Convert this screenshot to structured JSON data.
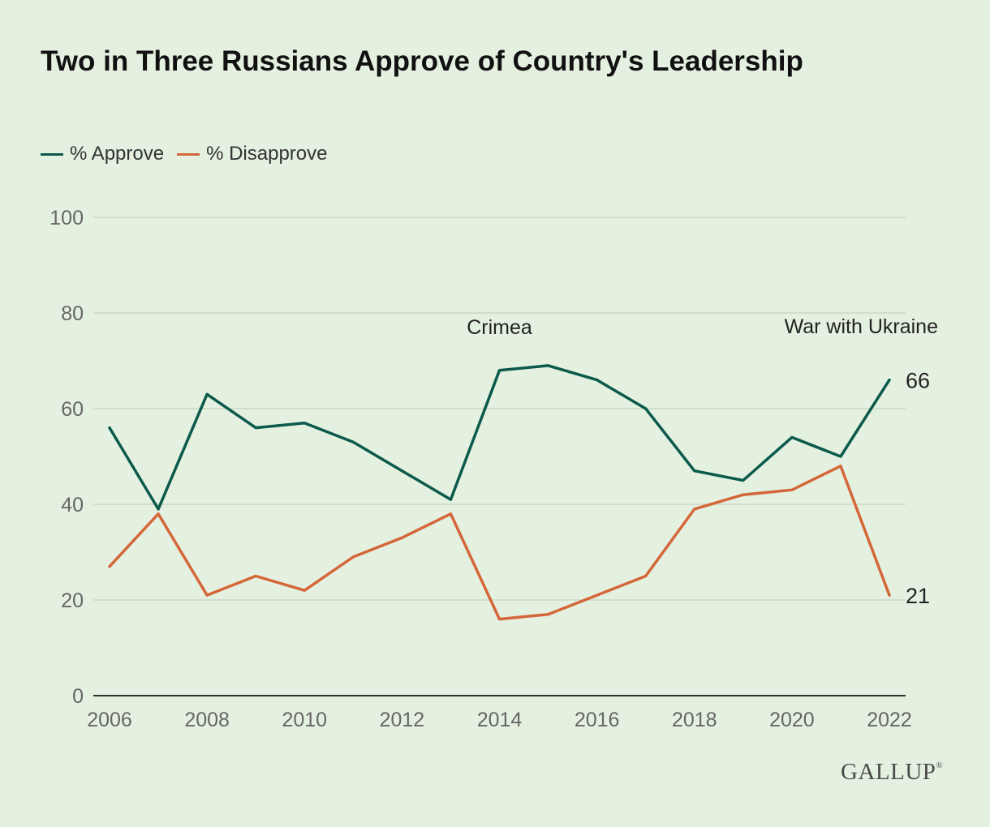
{
  "title": "Two in Three Russians Approve of Country's Leadership",
  "colors": {
    "background": "#e5f1e0",
    "approve": "#0b5a4c",
    "disapprove": "#d4673a",
    "grid": "#c9d9c4",
    "axis": "#333333",
    "tick_text": "#666666"
  },
  "legend": [
    {
      "name": "% Approve",
      "color": "#0b5a4c"
    },
    {
      "name": "% Disapprove",
      "color": "#d4673a"
    }
  ],
  "chart_data": {
    "type": "line",
    "title": "Two in Three Russians Approve of Country's Leadership",
    "xlabel": "",
    "ylabel": "",
    "x": [
      2006,
      2007,
      2008,
      2009,
      2010,
      2011,
      2012,
      2013,
      2014,
      2015,
      2016,
      2017,
      2018,
      2019,
      2020,
      2021,
      2022
    ],
    "series": [
      {
        "name": "% Approve",
        "values": [
          56,
          39,
          63,
          56,
          57,
          53,
          47,
          41,
          68,
          69,
          66,
          60,
          47,
          45,
          54,
          50,
          66
        ]
      },
      {
        "name": "% Disapprove",
        "values": [
          27,
          38,
          21,
          25,
          22,
          29,
          33,
          38,
          16,
          17,
          21,
          25,
          39,
          42,
          43,
          48,
          21
        ]
      }
    ],
    "xlim": [
      2006,
      2022
    ],
    "ylim": [
      0,
      100
    ],
    "x_ticks": [
      "2006",
      "2008",
      "2010",
      "2012",
      "2014",
      "2016",
      "2018",
      "2020",
      "2022"
    ],
    "y_ticks": [
      "0",
      "20",
      "40",
      "60",
      "80",
      "100"
    ],
    "grid": true,
    "legend_position": "top-left",
    "annotations": [
      {
        "text": "Crimea",
        "x": 2014
      },
      {
        "text": "War with Ukraine",
        "x": 2022
      }
    ],
    "end_labels": [
      "66",
      "21"
    ]
  },
  "source": {
    "brand": "GALLUP",
    "registered_mark": "®"
  }
}
